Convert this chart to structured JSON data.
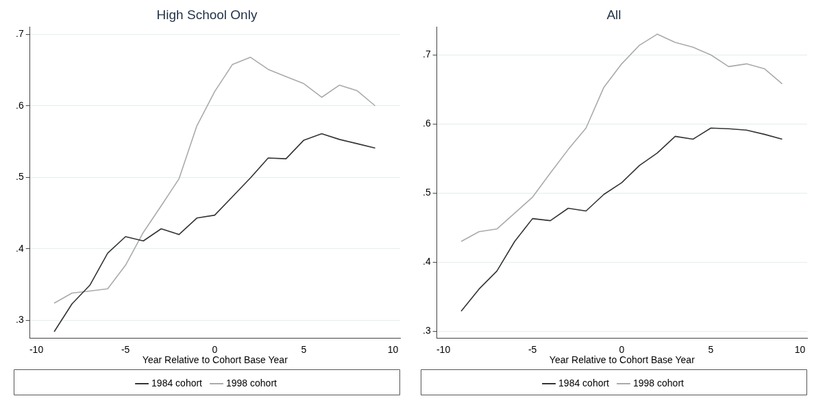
{
  "chart_data": [
    {
      "type": "line",
      "title": "High School Only",
      "xlabel": "Year Relative to Cohort Base Year",
      "x": [
        -9,
        -8,
        -7,
        -6,
        -5,
        -4,
        -3,
        -2,
        -1,
        0,
        1,
        2,
        3,
        4,
        5,
        6,
        7,
        8,
        9
      ],
      "series": [
        {
          "name": "1984 cohort",
          "color": "#333333",
          "values": [
            0.284,
            0.323,
            0.349,
            0.394,
            0.417,
            0.411,
            0.428,
            0.42,
            0.443,
            0.447,
            0.473,
            0.499,
            0.527,
            0.526,
            0.552,
            0.561,
            0.553,
            0.547,
            0.541
          ]
        },
        {
          "name": "1998 cohort",
          "color": "#aaaaaa",
          "values": [
            0.324,
            0.338,
            0.341,
            0.344,
            0.377,
            0.423,
            0.46,
            0.498,
            0.572,
            0.62,
            0.658,
            0.668,
            0.651,
            0.641,
            0.631,
            0.612,
            0.629,
            0.621,
            0.6
          ]
        }
      ],
      "xlim": [
        -10.36,
        10.4
      ],
      "xticks": [
        -10,
        -5,
        0,
        5,
        10
      ],
      "ylim": [
        0.275,
        0.71
      ],
      "yticks": [
        {
          "value": 0.3,
          "label": ".3"
        },
        {
          "value": 0.4,
          "label": ".4"
        },
        {
          "value": 0.5,
          "label": ".5"
        },
        {
          "value": 0.6,
          "label": ".6"
        },
        {
          "value": 0.7,
          "label": ".7"
        }
      ],
      "grid": "y",
      "legend": "bottom",
      "marker": "none",
      "line_style": "solid"
    },
    {
      "type": "line",
      "title": "All",
      "xlabel": "Year Relative to Cohort Base Year",
      "x": [
        -9,
        -8,
        -7,
        -6,
        -5,
        -4,
        -3,
        -2,
        -1,
        0,
        1,
        2,
        3,
        4,
        5,
        6,
        7,
        8,
        9
      ],
      "series": [
        {
          "name": "1984 cohort",
          "color": "#333333",
          "values": [
            0.329,
            0.361,
            0.387,
            0.43,
            0.463,
            0.46,
            0.478,
            0.474,
            0.498,
            0.515,
            0.54,
            0.558,
            0.582,
            0.578,
            0.594,
            0.593,
            0.591,
            0.585,
            0.578
          ]
        },
        {
          "name": "1998 cohort",
          "color": "#aaaaaa",
          "values": [
            0.43,
            0.444,
            0.448,
            0.471,
            0.494,
            0.529,
            0.563,
            0.594,
            0.653,
            0.687,
            0.714,
            0.73,
            0.718,
            0.711,
            0.7,
            0.683,
            0.687,
            0.68,
            0.658
          ]
        }
      ],
      "xlim": [
        -10.36,
        10.4
      ],
      "xticks": [
        -10,
        -5,
        0,
        5,
        10
      ],
      "ylim": [
        0.29,
        0.74
      ],
      "yticks": [
        {
          "value": 0.3,
          "label": ".3"
        },
        {
          "value": 0.4,
          "label": ".4"
        },
        {
          "value": 0.5,
          "label": ".5"
        },
        {
          "value": 0.6,
          "label": ".6"
        },
        {
          "value": 0.7,
          "label": ".7"
        }
      ],
      "grid": "y",
      "legend": "bottom",
      "marker": "none",
      "line_style": "solid"
    }
  ]
}
